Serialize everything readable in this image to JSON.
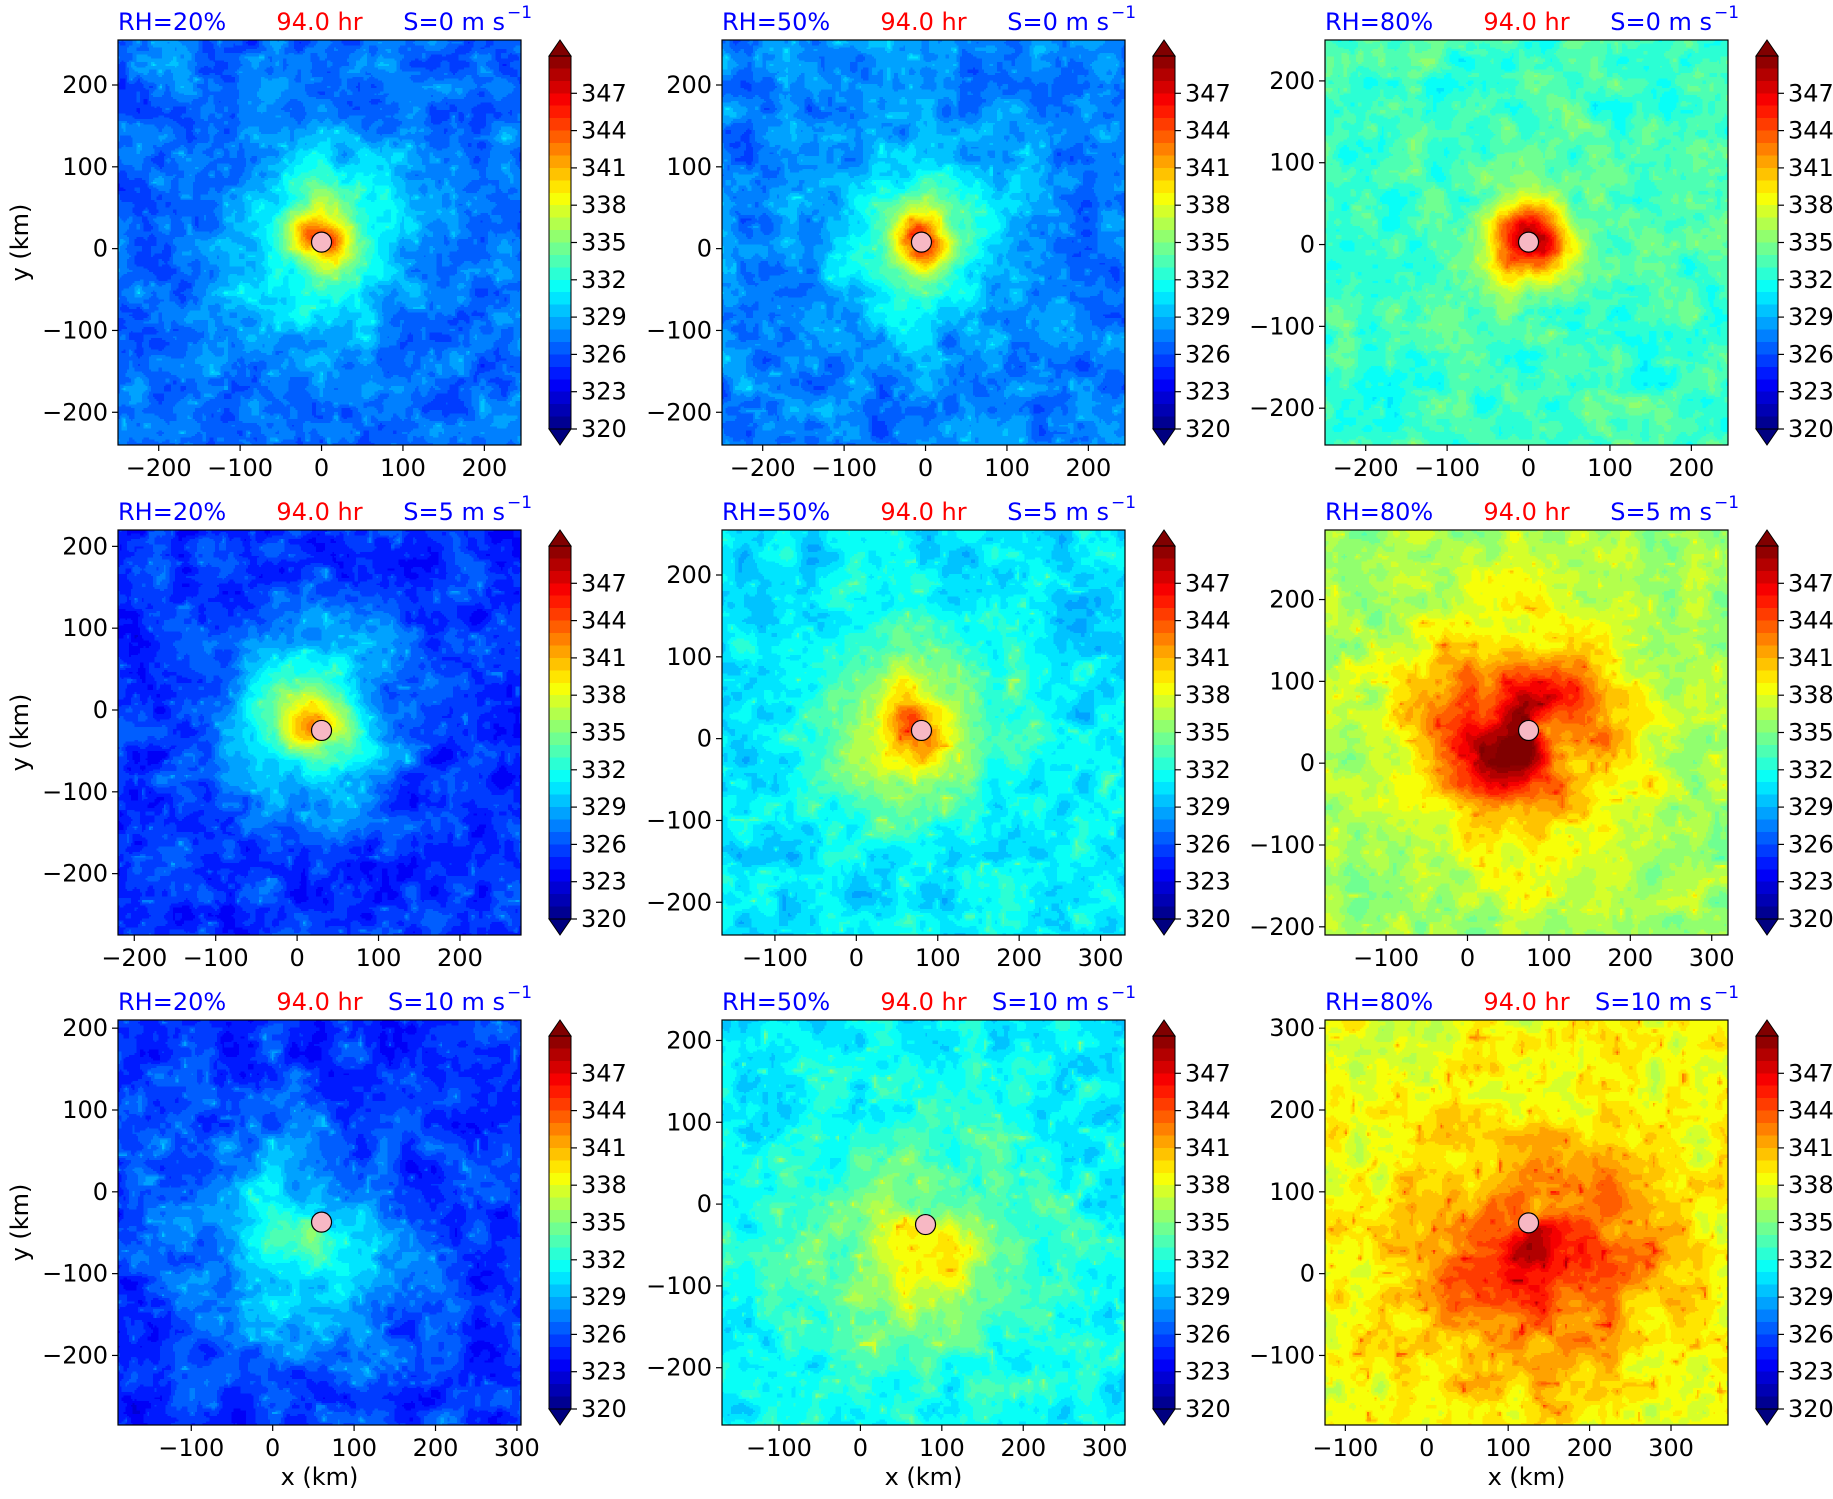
{
  "figure": {
    "time_label": "94.0 hr",
    "title_color": "#0000ff",
    "time_color": "#ff0000"
  },
  "colorbar": {
    "ticks": [
      "347",
      "344",
      "341",
      "338",
      "335",
      "332",
      "329",
      "326",
      "323",
      "320"
    ],
    "min": 320,
    "max": 350,
    "colormap": "jet",
    "extend": "both"
  },
  "axis_labels": {
    "x": "x (km)",
    "y": "y (km)"
  },
  "chart_data": [
    {
      "type": "heatmap",
      "rh_label": "RH=20%",
      "shear_label": "S=0 m s",
      "shear_sup": "−1",
      "ylabel": "y (km)",
      "xlabel": "",
      "xticks": [
        -200,
        -100,
        0,
        100,
        200
      ],
      "yticks": [
        200,
        100,
        0,
        -100,
        -200
      ],
      "xlim": [
        -250,
        245
      ],
      "ylim": [
        -240,
        255
      ],
      "center": [
        0,
        8
      ],
      "env": 327,
      "core": 345,
      "core_r": 30,
      "ring": 335,
      "ring_r": 95,
      "spiral": 0.55,
      "asym": 0.15,
      "cells": 0.25
    },
    {
      "type": "heatmap",
      "rh_label": "RH=50%",
      "shear_label": "S=0 m s",
      "shear_sup": "−1",
      "ylabel": "",
      "xlabel": "",
      "xticks": [
        -200,
        -100,
        0,
        100,
        200
      ],
      "yticks": [
        200,
        100,
        0,
        -100,
        -200
      ],
      "xlim": [
        -250,
        245
      ],
      "ylim": [
        -240,
        255
      ],
      "center": [
        -5,
        8
      ],
      "env": 327.5,
      "core": 345,
      "core_r": 35,
      "ring": 334,
      "ring_r": 105,
      "spiral": 0.5,
      "asym": 0.1,
      "cells": 0.25
    },
    {
      "type": "heatmap",
      "rh_label": "RH=80%",
      "shear_label": "S=0 m s",
      "shear_sup": "−1",
      "ylabel": "",
      "xlabel": "",
      "xticks": [
        -200,
        -100,
        0,
        100,
        200
      ],
      "yticks": [
        200,
        100,
        0,
        -100,
        -200
      ],
      "xlim": [
        -250,
        245
      ],
      "ylim": [
        -245,
        250
      ],
      "center": [
        0,
        3
      ],
      "env": 333,
      "core": 349,
      "core_r": 45,
      "ring": 335,
      "ring_r": 90,
      "spiral": 0.15,
      "asym": 0.1,
      "cells": 0.15
    },
    {
      "type": "heatmap",
      "rh_label": "RH=20%",
      "shear_label": "S=5 m s",
      "shear_sup": "−1",
      "ylabel": "y (km)",
      "xlabel": "",
      "xticks": [
        -200,
        -100,
        0,
        100,
        200
      ],
      "yticks": [
        200,
        100,
        0,
        -100,
        -200
      ],
      "xlim": [
        -220,
        275
      ],
      "ylim": [
        -275,
        220
      ],
      "center": [
        30,
        -25
      ],
      "env": 325,
      "core": 339,
      "core_r": 50,
      "ring": 333,
      "ring_r": 110,
      "spiral": 0.55,
      "asym": 0.35,
      "cells": 0.35
    },
    {
      "type": "heatmap",
      "rh_label": "RH=50%",
      "shear_label": "S=5 m s",
      "shear_sup": "−1",
      "ylabel": "",
      "xlabel": "",
      "xticks": [
        -100,
        0,
        100,
        200,
        300
      ],
      "yticks": [
        200,
        100,
        0,
        -100,
        -200
      ],
      "xlim": [
        -165,
        330
      ],
      "ylim": [
        -240,
        255
      ],
      "center": [
        80,
        10
      ],
      "env": 330.5,
      "core": 342,
      "core_r": 55,
      "ring": 336,
      "ring_r": 120,
      "spiral": 0.5,
      "asym": 0.2,
      "cells": 0.4
    },
    {
      "type": "heatmap",
      "rh_label": "RH=80%",
      "shear_label": "S=5 m s",
      "shear_sup": "−1",
      "ylabel": "",
      "xlabel": "",
      "xticks": [
        -100,
        0,
        100,
        200,
        300
      ],
      "yticks": [
        200,
        100,
        0,
        -100,
        -200
      ],
      "xlim": [
        -175,
        320
      ],
      "ylim": [
        -210,
        285
      ],
      "center": [
        75,
        40
      ],
      "env": 336,
      "core": 349,
      "core_r": 60,
      "ring": 346,
      "ring_r": 130,
      "spiral": 0.6,
      "asym": 0.25,
      "cells": 0.35
    },
    {
      "type": "heatmap",
      "rh_label": "RH=20%",
      "shear_label": "S=10 m s",
      "shear_sup": "−1",
      "ylabel": "y (km)",
      "xlabel": "x (km)",
      "xticks": [
        -100,
        0,
        100,
        200,
        300
      ],
      "yticks": [
        200,
        100,
        0,
        -100,
        -200
      ],
      "xlim": [
        -190,
        305
      ],
      "ylim": [
        -285,
        210
      ],
      "center": [
        60,
        -37
      ],
      "env": 325,
      "core": 331,
      "core_r": 90,
      "ring": 330,
      "ring_r": 150,
      "spiral": 0.3,
      "asym": 0.6,
      "cells": 0.35
    },
    {
      "type": "heatmap",
      "rh_label": "RH=50%",
      "shear_label": "S=10 m s",
      "shear_sup": "−1",
      "ylabel": "",
      "xlabel": "x (km)",
      "xticks": [
        -100,
        0,
        100,
        200,
        300
      ],
      "yticks": [
        200,
        100,
        0,
        -100,
        -200
      ],
      "xlim": [
        -170,
        325
      ],
      "ylim": [
        -270,
        225
      ],
      "center": [
        80,
        -25
      ],
      "env": 331,
      "core": 337,
      "core_r": 90,
      "ring": 336,
      "ring_r": 150,
      "spiral": 0.4,
      "asym": 0.45,
      "cells": 0.5
    },
    {
      "type": "heatmap",
      "rh_label": "RH=80%",
      "shear_label": "S=10 m s",
      "shear_sup": "−1",
      "ylabel": "",
      "xlabel": "x (km)",
      "xticks": [
        -100,
        0,
        100,
        200,
        300
      ],
      "yticks": [
        300,
        200,
        100,
        0,
        -100
      ],
      "xlim": [
        -125,
        370
      ],
      "ylim": [
        -185,
        310
      ],
      "center": [
        125,
        62
      ],
      "env": 338,
      "core": 345,
      "core_r": 110,
      "ring": 343,
      "ring_r": 170,
      "spiral": 0.4,
      "asym": 0.55,
      "cells": 0.55
    }
  ]
}
